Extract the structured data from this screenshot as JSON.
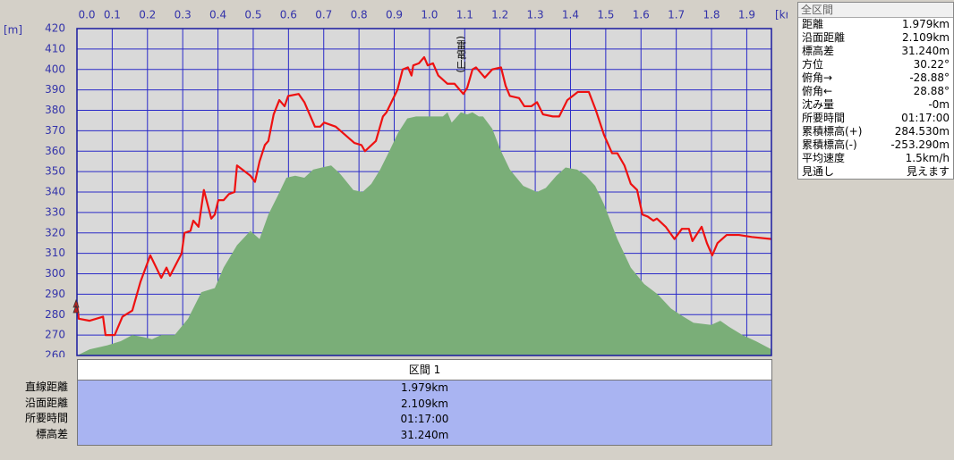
{
  "chart_data": {
    "type": "line",
    "y_label": "[m]",
    "x_label": "[km]",
    "xlim": [
      0,
      1.97
    ],
    "ylim": [
      260,
      420
    ],
    "xticks": [
      {
        "value": 0,
        "label": "0.0"
      },
      0.1,
      0.2,
      0.3,
      0.4,
      0.5,
      0.6,
      0.7,
      0.8,
      0.9,
      {
        "value": 1,
        "label": "1.0"
      },
      1.1,
      1.2,
      1.3,
      1.4,
      1.5,
      1.6,
      1.7,
      1.8,
      1.9
    ],
    "yticks": [
      260,
      270,
      280,
      290,
      300,
      310,
      320,
      330,
      340,
      350,
      360,
      370,
      380,
      390,
      400,
      410,
      420
    ],
    "grid": true,
    "annotations": [
      {
        "text": "(雷電山)",
        "x": 1.089
      }
    ],
    "series": [
      {
        "type": "area",
        "color": "#7aae78",
        "x": [
          0,
          0.036,
          0.086,
          0.124,
          0.157,
          0.188,
          0.213,
          0.239,
          0.277,
          0.315,
          0.353,
          0.391,
          0.416,
          0.454,
          0.492,
          0.518,
          0.543,
          0.569,
          0.594,
          0.619,
          0.645,
          0.67,
          0.695,
          0.721,
          0.746,
          0.784,
          0.81,
          0.835,
          0.86,
          0.886,
          0.911,
          0.937,
          0.962,
          1.0,
          1.038,
          1.051,
          1.063,
          1.089,
          1.107,
          1.122,
          1.14,
          1.152,
          1.178,
          1.203,
          1.228,
          1.266,
          1.305,
          1.33,
          1.36,
          1.386,
          1.419,
          1.444,
          1.47,
          1.495,
          1.533,
          1.571,
          1.609,
          1.647,
          1.685,
          1.711,
          1.749,
          1.799,
          1.825,
          1.85,
          1.888,
          1.926,
          1.97
        ],
        "values": [
          260,
          263,
          265,
          267,
          270,
          269,
          268,
          270,
          270,
          278,
          291,
          293,
          303,
          314,
          321,
          317,
          329,
          338,
          347,
          348,
          347,
          351,
          352,
          353,
          349,
          341,
          340,
          344,
          351,
          360,
          369,
          376,
          377,
          377,
          377,
          379,
          374,
          379,
          378,
          379,
          377,
          377,
          371,
          360,
          351,
          343,
          340,
          342,
          348,
          352,
          351,
          348,
          343,
          334,
          317,
          303,
          295,
          290,
          283,
          280,
          276,
          275,
          277,
          274,
          270,
          267,
          263
        ]
      },
      {
        "type": "line",
        "color": "#ee1111",
        "x": [
          0,
          0.005,
          0.036,
          0.074,
          0.081,
          0.107,
          0.129,
          0.157,
          0.18,
          0.208,
          0.239,
          0.254,
          0.264,
          0.297,
          0.305,
          0.322,
          0.33,
          0.345,
          0.36,
          0.381,
          0.391,
          0.401,
          0.416,
          0.431,
          0.447,
          0.454,
          0.492,
          0.505,
          0.518,
          0.533,
          0.543,
          0.558,
          0.574,
          0.589,
          0.599,
          0.629,
          0.645,
          0.675,
          0.69,
          0.701,
          0.734,
          0.787,
          0.807,
          0.817,
          0.848,
          0.868,
          0.878,
          0.909,
          0.924,
          0.939,
          0.949,
          0.954,
          0.97,
          0.985,
          0.995,
          1.01,
          1.025,
          1.051,
          1.071,
          1.096,
          1.107,
          1.122,
          1.132,
          1.147,
          1.157,
          1.178,
          1.203,
          1.216,
          1.228,
          1.254,
          1.269,
          1.289,
          1.305,
          1.322,
          1.35,
          1.368,
          1.391,
          1.406,
          1.421,
          1.452,
          1.472,
          1.495,
          1.518,
          1.533,
          1.553,
          1.571,
          1.589,
          1.604,
          1.619,
          1.635,
          1.645,
          1.67,
          1.695,
          1.716,
          1.736,
          1.746,
          1.772,
          1.787,
          1.802,
          1.817,
          1.843,
          1.878,
          1.914,
          1.97
        ],
        "values": [
          286,
          278,
          277,
          279,
          270,
          270,
          279,
          282,
          296,
          309,
          298,
          303,
          299,
          310,
          320,
          321,
          326,
          323,
          341,
          327,
          329,
          336,
          336,
          339,
          340,
          353,
          348,
          345,
          355,
          363,
          365,
          378,
          385,
          382,
          387,
          388,
          384,
          372,
          372,
          374,
          372,
          364,
          363,
          360,
          365,
          377,
          379,
          390,
          400,
          401,
          397,
          402,
          403,
          406,
          402,
          403,
          397,
          393,
          393,
          388,
          391,
          400,
          401,
          398,
          396,
          400,
          401,
          392,
          387,
          386,
          382,
          382,
          384,
          378,
          377,
          377,
          385,
          387,
          389,
          389,
          380,
          368,
          359,
          359,
          353,
          344,
          341,
          329,
          328,
          326,
          327,
          323,
          317,
          322,
          322,
          316,
          323,
          315,
          309,
          315,
          319,
          319,
          318,
          317
        ]
      }
    ]
  },
  "summary_panel": {
    "title": "全区間",
    "rows": [
      [
        "距離",
        "1.979km"
      ],
      [
        "沿面距離",
        "2.109km"
      ],
      [
        "標高差",
        "31.240m"
      ],
      [
        "方位",
        "30.22°"
      ],
      [
        "俯角→",
        "-28.88°"
      ],
      [
        "俯角←",
        "28.88°"
      ],
      [
        "沈み量",
        "-0m"
      ],
      [
        "所要時間",
        "01:17:00"
      ],
      [
        "累積標高(+)",
        "284.530m"
      ],
      [
        "累積標高(-)",
        "-253.290m"
      ],
      [
        "平均速度",
        "1.5km/h"
      ],
      [
        "見通し",
        "見えます"
      ]
    ]
  },
  "section_table": {
    "header": "区間 1",
    "rows": [
      [
        "直線距離",
        "1.979km"
      ],
      [
        "沿面距離",
        "2.109km"
      ],
      [
        "所要時間",
        "01:17:00"
      ],
      [
        "標高差",
        "31.240m"
      ]
    ]
  }
}
